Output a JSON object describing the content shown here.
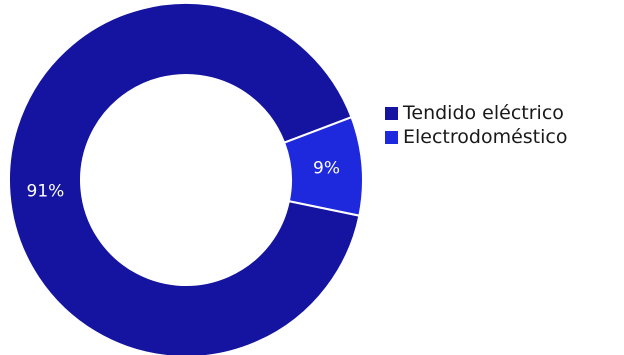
{
  "chart_data": {
    "type": "pie",
    "donut": true,
    "title": "",
    "legend_position": "right",
    "categories": [
      "Tendido eléctrico",
      "Electrodoméstico"
    ],
    "values": [
      91,
      9
    ],
    "labels": [
      "91%",
      "9%"
    ],
    "colors": [
      "#1414a0",
      "#1e28dc"
    ],
    "slice_border_color": "#ffffff"
  }
}
